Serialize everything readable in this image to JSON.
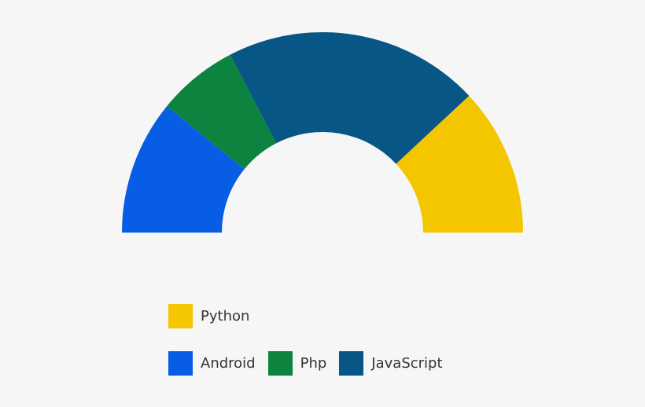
{
  "chart_data": {
    "type": "pie",
    "variant": "semi-donut",
    "categories": [
      "Android",
      "Php",
      "JavaScript",
      "Python"
    ],
    "values": [
      20,
      12,
      38,
      22
    ],
    "colors": [
      "#075de4",
      "#0c833e",
      "#075685",
      "#f4c600"
    ],
    "title": "",
    "legend_placement": "bottom-left",
    "legend_rows": [
      [
        {
          "name": "Python",
          "color": "#f4c600"
        }
      ],
      [
        {
          "name": "Android",
          "color": "#075de4"
        },
        {
          "name": "Php",
          "color": "#0c833e"
        },
        {
          "name": "JavaScript",
          "color": "#075685"
        }
      ]
    ]
  }
}
